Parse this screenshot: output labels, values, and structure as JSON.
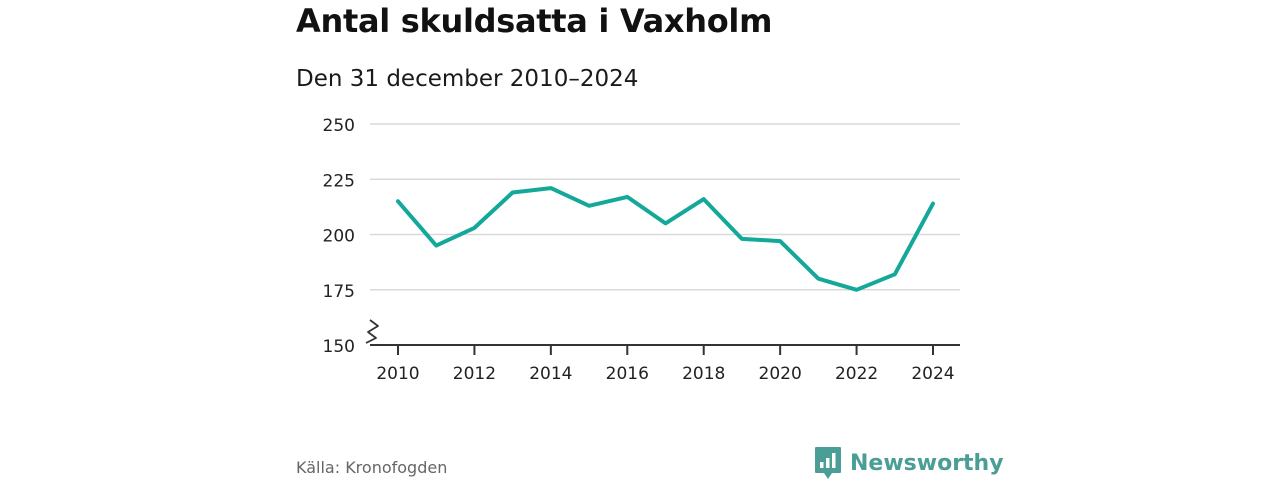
{
  "header": {
    "title": "Antal skuldsatta i Vaxholm",
    "subtitle": "Den 31 december 2010–2024"
  },
  "footer": {
    "source": "Källa: Kronofogden",
    "brand": "Newsworthy"
  },
  "colors": {
    "line": "#13a89a",
    "grid": "#d9d9d9",
    "axis": "#333333",
    "brand": "#4a9e96"
  },
  "icons": {
    "brand_logo": "bar-chart-speech-bubble-icon",
    "axis_break": "zigzag-axis-break-icon"
  },
  "chart_data": {
    "type": "line",
    "title": "Antal skuldsatta i Vaxholm",
    "subtitle": "Den 31 december 2010–2024",
    "xlabel": "",
    "ylabel": "",
    "x": [
      2010,
      2011,
      2012,
      2013,
      2014,
      2015,
      2016,
      2017,
      2018,
      2019,
      2020,
      2021,
      2022,
      2023,
      2024
    ],
    "series": [
      {
        "values": [
          215,
          195,
          203,
          219,
          221,
          213,
          217,
          205,
          216,
          198,
          197,
          180,
          175,
          182,
          214
        ]
      }
    ],
    "xticks": [
      "2010",
      "2012",
      "2014",
      "2016",
      "2018",
      "2020",
      "2022",
      "2024"
    ],
    "yticks": [
      "150",
      "175",
      "200",
      "225",
      "250"
    ],
    "xlim": [
      2010,
      2024
    ],
    "ylim": [
      150,
      250
    ],
    "grid": true,
    "axis_break": true
  }
}
